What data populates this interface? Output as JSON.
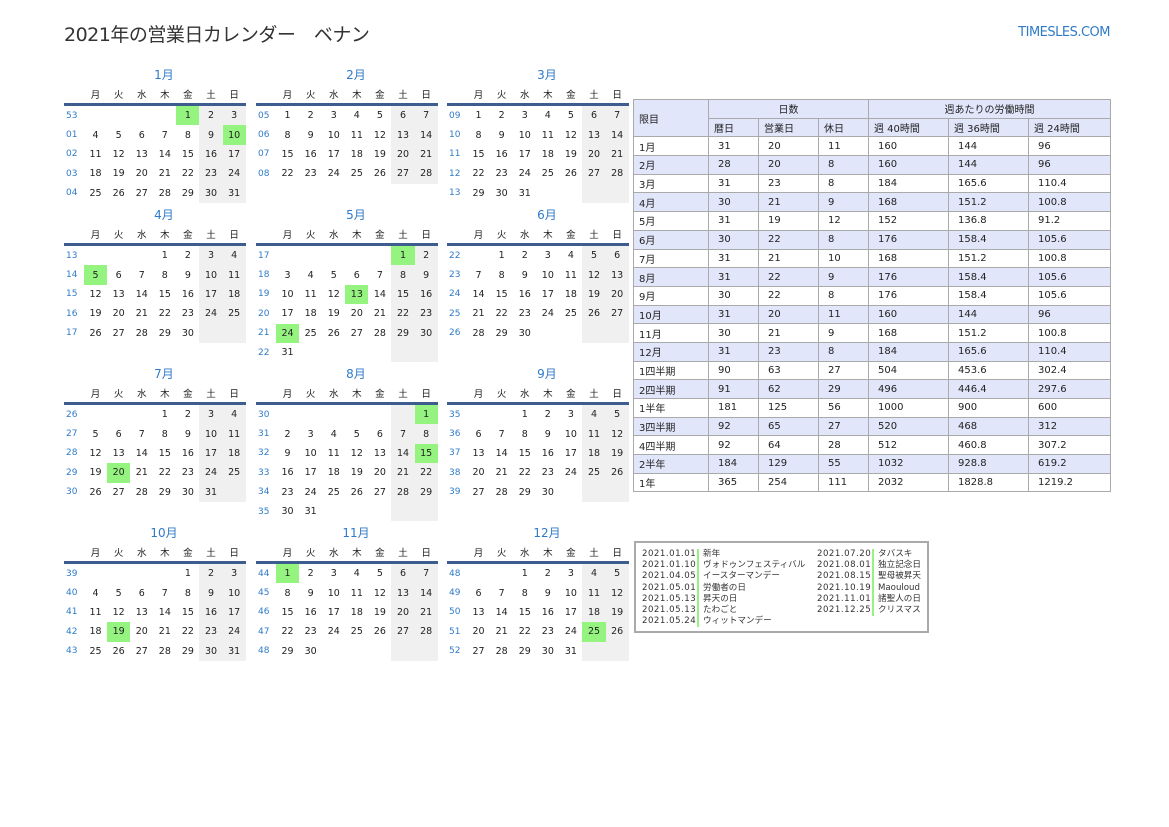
{
  "header": {
    "title": "2021年の営業日カレンダー　ベナン",
    "logo": "TIMESLES.COM"
  },
  "weekdays": [
    "月",
    "火",
    "水",
    "木",
    "金",
    "土",
    "日"
  ],
  "colors": {
    "accent": "#2f7bc8",
    "holiday": "#95f380",
    "weekend": "#f0f0f0",
    "table_header": "#e2e6fb"
  },
  "months": [
    {
      "name": "1月",
      "holidays": [
        "1",
        "10"
      ],
      "weeks": [
        [
          "53",
          "",
          "",
          "",
          "",
          "1",
          "2",
          "3"
        ],
        [
          "01",
          "4",
          "5",
          "6",
          "7",
          "8",
          "9",
          "10"
        ],
        [
          "02",
          "11",
          "12",
          "13",
          "14",
          "15",
          "16",
          "17"
        ],
        [
          "03",
          "18",
          "19",
          "20",
          "21",
          "22",
          "23",
          "24"
        ],
        [
          "04",
          "25",
          "26",
          "27",
          "28",
          "29",
          "30",
          "31"
        ]
      ]
    },
    {
      "name": "2月",
      "holidays": [],
      "weeks": [
        [
          "05",
          "1",
          "2",
          "3",
          "4",
          "5",
          "6",
          "7"
        ],
        [
          "06",
          "8",
          "9",
          "10",
          "11",
          "12",
          "13",
          "14"
        ],
        [
          "07",
          "15",
          "16",
          "17",
          "18",
          "19",
          "20",
          "21"
        ],
        [
          "08",
          "22",
          "23",
          "24",
          "25",
          "26",
          "27",
          "28"
        ]
      ]
    },
    {
      "name": "3月",
      "holidays": [],
      "weeks": [
        [
          "09",
          "1",
          "2",
          "3",
          "4",
          "5",
          "6",
          "7"
        ],
        [
          "10",
          "8",
          "9",
          "10",
          "11",
          "12",
          "13",
          "14"
        ],
        [
          "11",
          "15",
          "16",
          "17",
          "18",
          "19",
          "20",
          "21"
        ],
        [
          "12",
          "22",
          "23",
          "24",
          "25",
          "26",
          "27",
          "28"
        ],
        [
          "13",
          "29",
          "30",
          "31",
          "",
          "",
          "",
          ""
        ]
      ]
    },
    {
      "name": "4月",
      "holidays": [
        "5"
      ],
      "weeks": [
        [
          "13",
          "",
          "",
          "",
          "1",
          "2",
          "3",
          "4"
        ],
        [
          "14",
          "5",
          "6",
          "7",
          "8",
          "9",
          "10",
          "11"
        ],
        [
          "15",
          "12",
          "13",
          "14",
          "15",
          "16",
          "17",
          "18"
        ],
        [
          "16",
          "19",
          "20",
          "21",
          "22",
          "23",
          "24",
          "25"
        ],
        [
          "17",
          "26",
          "27",
          "28",
          "29",
          "30",
          "",
          ""
        ]
      ]
    },
    {
      "name": "5月",
      "holidays": [
        "1",
        "13",
        "24"
      ],
      "weeks": [
        [
          "17",
          "",
          "",
          "",
          "",
          "",
          "1",
          "2"
        ],
        [
          "18",
          "3",
          "4",
          "5",
          "6",
          "7",
          "8",
          "9"
        ],
        [
          "19",
          "10",
          "11",
          "12",
          "13",
          "14",
          "15",
          "16"
        ],
        [
          "20",
          "17",
          "18",
          "19",
          "20",
          "21",
          "22",
          "23"
        ],
        [
          "21",
          "24",
          "25",
          "26",
          "27",
          "28",
          "29",
          "30"
        ],
        [
          "22",
          "31",
          "",
          "",
          "",
          "",
          "",
          ""
        ]
      ]
    },
    {
      "name": "6月",
      "holidays": [],
      "weeks": [
        [
          "22",
          "",
          "1",
          "2",
          "3",
          "4",
          "5",
          "6"
        ],
        [
          "23",
          "7",
          "8",
          "9",
          "10",
          "11",
          "12",
          "13"
        ],
        [
          "24",
          "14",
          "15",
          "16",
          "17",
          "18",
          "19",
          "20"
        ],
        [
          "25",
          "21",
          "22",
          "23",
          "24",
          "25",
          "26",
          "27"
        ],
        [
          "26",
          "28",
          "29",
          "30",
          "",
          "",
          "",
          ""
        ]
      ]
    },
    {
      "name": "7月",
      "holidays": [
        "20"
      ],
      "weeks": [
        [
          "26",
          "",
          "",
          "",
          "1",
          "2",
          "3",
          "4"
        ],
        [
          "27",
          "5",
          "6",
          "7",
          "8",
          "9",
          "10",
          "11"
        ],
        [
          "28",
          "12",
          "13",
          "14",
          "15",
          "16",
          "17",
          "18"
        ],
        [
          "29",
          "19",
          "20",
          "21",
          "22",
          "23",
          "24",
          "25"
        ],
        [
          "30",
          "26",
          "27",
          "28",
          "29",
          "30",
          "31",
          ""
        ]
      ]
    },
    {
      "name": "8月",
      "holidays": [
        "1",
        "15"
      ],
      "weeks": [
        [
          "30",
          "",
          "",
          "",
          "",
          "",
          "",
          "1"
        ],
        [
          "31",
          "2",
          "3",
          "4",
          "5",
          "6",
          "7",
          "8"
        ],
        [
          "32",
          "9",
          "10",
          "11",
          "12",
          "13",
          "14",
          "15"
        ],
        [
          "33",
          "16",
          "17",
          "18",
          "19",
          "20",
          "21",
          "22"
        ],
        [
          "34",
          "23",
          "24",
          "25",
          "26",
          "27",
          "28",
          "29"
        ],
        [
          "35",
          "30",
          "31",
          "",
          "",
          "",
          "",
          ""
        ]
      ]
    },
    {
      "name": "9月",
      "holidays": [],
      "weeks": [
        [
          "35",
          "",
          "",
          "1",
          "2",
          "3",
          "4",
          "5"
        ],
        [
          "36",
          "6",
          "7",
          "8",
          "9",
          "10",
          "11",
          "12"
        ],
        [
          "37",
          "13",
          "14",
          "15",
          "16",
          "17",
          "18",
          "19"
        ],
        [
          "38",
          "20",
          "21",
          "22",
          "23",
          "24",
          "25",
          "26"
        ],
        [
          "39",
          "27",
          "28",
          "29",
          "30",
          "",
          "",
          ""
        ]
      ]
    },
    {
      "name": "10月",
      "holidays": [
        "19"
      ],
      "weeks": [
        [
          "39",
          "",
          "",
          "",
          "",
          "1",
          "2",
          "3"
        ],
        [
          "40",
          "4",
          "5",
          "6",
          "7",
          "8",
          "9",
          "10"
        ],
        [
          "41",
          "11",
          "12",
          "13",
          "14",
          "15",
          "16",
          "17"
        ],
        [
          "42",
          "18",
          "19",
          "20",
          "21",
          "22",
          "23",
          "24"
        ],
        [
          "43",
          "25",
          "26",
          "27",
          "28",
          "29",
          "30",
          "31"
        ]
      ]
    },
    {
      "name": "11月",
      "holidays": [
        "1"
      ],
      "weeks": [
        [
          "44",
          "1",
          "2",
          "3",
          "4",
          "5",
          "6",
          "7"
        ],
        [
          "45",
          "8",
          "9",
          "10",
          "11",
          "12",
          "13",
          "14"
        ],
        [
          "46",
          "15",
          "16",
          "17",
          "18",
          "19",
          "20",
          "21"
        ],
        [
          "47",
          "22",
          "23",
          "24",
          "25",
          "26",
          "27",
          "28"
        ],
        [
          "48",
          "29",
          "30",
          "",
          "",
          "",
          "",
          ""
        ]
      ]
    },
    {
      "name": "12月",
      "holidays": [
        "25"
      ],
      "weeks": [
        [
          "48",
          "",
          "",
          "1",
          "2",
          "3",
          "4",
          "5"
        ],
        [
          "49",
          "6",
          "7",
          "8",
          "9",
          "10",
          "11",
          "12"
        ],
        [
          "50",
          "13",
          "14",
          "15",
          "16",
          "17",
          "18",
          "19"
        ],
        [
          "51",
          "20",
          "21",
          "22",
          "23",
          "24",
          "25",
          "26"
        ],
        [
          "52",
          "27",
          "28",
          "29",
          "30",
          "31",
          "",
          ""
        ]
      ]
    }
  ],
  "stats": {
    "h_period": "限目",
    "h_days": "日数",
    "h_hours": "週あたりの労働時間",
    "cols": [
      "暦日",
      "営業日",
      "休日",
      "週 40時間",
      "週 36時間",
      "週 24時間"
    ],
    "rows": [
      [
        "1月",
        "31",
        "20",
        "11",
        "160",
        "144",
        "96"
      ],
      [
        "2月",
        "28",
        "20",
        "8",
        "160",
        "144",
        "96"
      ],
      [
        "3月",
        "31",
        "23",
        "8",
        "184",
        "165.6",
        "110.4"
      ],
      [
        "4月",
        "30",
        "21",
        "9",
        "168",
        "151.2",
        "100.8"
      ],
      [
        "5月",
        "31",
        "19",
        "12",
        "152",
        "136.8",
        "91.2"
      ],
      [
        "6月",
        "30",
        "22",
        "8",
        "176",
        "158.4",
        "105.6"
      ],
      [
        "7月",
        "31",
        "21",
        "10",
        "168",
        "151.2",
        "100.8"
      ],
      [
        "8月",
        "31",
        "22",
        "9",
        "176",
        "158.4",
        "105.6"
      ],
      [
        "9月",
        "30",
        "22",
        "8",
        "176",
        "158.4",
        "105.6"
      ],
      [
        "10月",
        "31",
        "20",
        "11",
        "160",
        "144",
        "96"
      ],
      [
        "11月",
        "30",
        "21",
        "9",
        "168",
        "151.2",
        "100.8"
      ],
      [
        "12月",
        "31",
        "23",
        "8",
        "184",
        "165.6",
        "110.4"
      ],
      [
        "1四半期",
        "90",
        "63",
        "27",
        "504",
        "453.6",
        "302.4"
      ],
      [
        "2四半期",
        "91",
        "62",
        "29",
        "496",
        "446.4",
        "297.6"
      ],
      [
        "1半年",
        "181",
        "125",
        "56",
        "1000",
        "900",
        "600"
      ],
      [
        "3四半期",
        "92",
        "65",
        "27",
        "520",
        "468",
        "312"
      ],
      [
        "4四半期",
        "92",
        "64",
        "28",
        "512",
        "460.8",
        "307.2"
      ],
      [
        "2半年",
        "184",
        "129",
        "55",
        "1032",
        "928.8",
        "619.2"
      ],
      [
        "1年",
        "365",
        "254",
        "111",
        "2032",
        "1828.8",
        "1219.2"
      ]
    ]
  },
  "holidays": [
    [
      "2021.01.01",
      "新年"
    ],
    [
      "2021.01.10",
      "ヴォドゥンフェスティバル"
    ],
    [
      "2021.04.05",
      "イースターマンデー"
    ],
    [
      "2021.05.01",
      "労働者の日"
    ],
    [
      "2021.05.13",
      "昇天の日"
    ],
    [
      "2021.05.13",
      "たわごと"
    ],
    [
      "2021.05.24",
      "ウィットマンデー"
    ],
    [
      "2021.07.20",
      "タバスキ"
    ],
    [
      "2021.08.01",
      "独立記念日"
    ],
    [
      "2021.08.15",
      "聖母被昇天"
    ],
    [
      "2021.10.19",
      "Maouloud"
    ],
    [
      "2021.11.01",
      "諸聖人の日"
    ],
    [
      "2021.12.25",
      "クリスマス"
    ]
  ]
}
